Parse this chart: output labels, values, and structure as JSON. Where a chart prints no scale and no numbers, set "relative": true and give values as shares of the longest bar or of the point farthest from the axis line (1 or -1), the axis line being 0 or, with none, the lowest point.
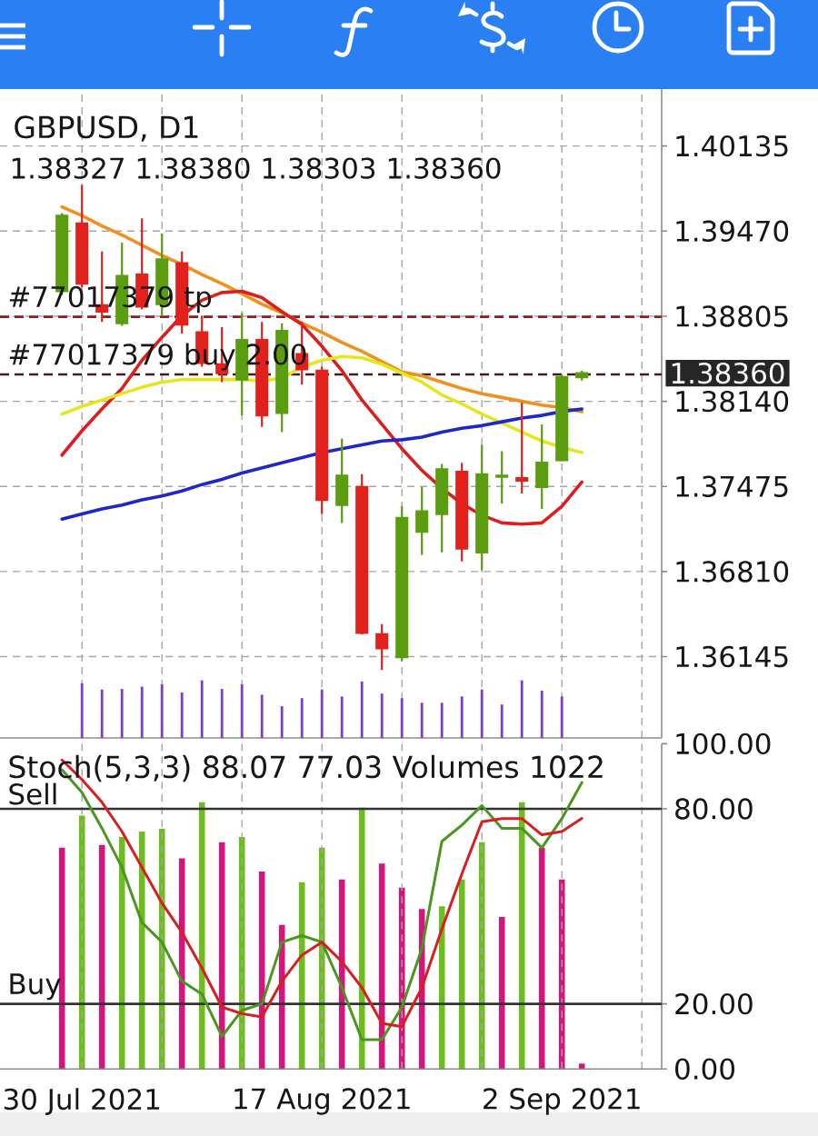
{
  "chart_data": [
    {
      "type": "candlestick",
      "title": "GBPUSD, D1",
      "subtitle": "1.38327 1.38380 1.38303 1.38360",
      "categories": [
        null,
        null,
        null,
        null,
        null,
        null,
        null,
        null,
        null,
        null,
        null,
        null,
        null,
        null,
        null,
        null,
        null,
        null,
        null,
        null,
        null,
        null,
        null,
        null,
        null,
        null,
        null
      ],
      "ohlc": [
        [
          1.39,
          1.3961,
          1.3897,
          1.3959
        ],
        [
          1.3953,
          1.3983,
          1.3903,
          1.3906
        ],
        [
          1.3889,
          1.3931,
          1.3876,
          1.3884
        ],
        [
          1.3875,
          1.3938,
          1.3873,
          1.3912
        ],
        [
          1.3913,
          1.3957,
          1.3886,
          1.3888
        ],
        [
          1.389,
          1.3945,
          1.3881,
          1.3925
        ],
        [
          1.3922,
          1.3931,
          1.3867,
          1.3874
        ],
        [
          1.3868,
          1.3881,
          1.3841,
          1.3844
        ],
        [
          1.3843,
          1.3872,
          1.3829,
          1.3836
        ],
        [
          1.3831,
          1.3883,
          1.3803,
          1.3862
        ],
        [
          1.3862,
          1.3876,
          1.3794,
          1.3803
        ],
        [
          1.3805,
          1.3875,
          1.379,
          1.3869
        ],
        [
          1.3851,
          1.3876,
          1.3827,
          1.3839
        ],
        [
          1.3838,
          1.3841,
          1.3726,
          1.3737
        ],
        [
          1.3733,
          1.3785,
          1.3719,
          1.3756
        ],
        [
          1.3747,
          1.3757,
          1.3632,
          1.3633
        ],
        [
          1.3632,
          1.364,
          1.3604,
          1.3621
        ],
        [
          1.3614,
          1.3732,
          1.3611,
          1.3723
        ],
        [
          1.3712,
          1.3747,
          1.3694,
          1.3728
        ],
        [
          1.3726,
          1.3765,
          1.3696,
          1.3761
        ],
        [
          1.3759,
          1.3766,
          1.3689,
          1.3699
        ],
        [
          1.3696,
          1.378,
          1.3682,
          1.3757
        ],
        [
          1.3755,
          1.3775,
          1.3734,
          1.3756
        ],
        [
          1.3754,
          1.3813,
          1.3742,
          1.3752
        ],
        [
          1.3747,
          1.3796,
          1.373,
          1.3766
        ],
        [
          1.3768,
          1.3835,
          1.3767,
          1.3833
        ],
        [
          1.38327,
          1.3838,
          1.38303,
          1.3836
        ]
      ],
      "colors": [
        "#5a9e10",
        "#e3211c",
        "#e3211c",
        "#5a9e10",
        "#e3211c",
        "#5a9e10",
        "#e3211c",
        "#e3211c",
        "#e3211c",
        "#5a9e10",
        "#e3211c",
        "#5a9e10",
        "#e3211c",
        "#e3211c",
        "#5a9e10",
        "#e3211c",
        "#e3211c",
        "#5a9e10",
        "#5a9e10",
        "#5a9e10",
        "#e3211c",
        "#5a9e10",
        "#5a9e10",
        "#e3211c",
        "#5a9e10",
        "#5a9e10",
        "#5a9e10"
      ],
      "series": [
        {
          "type": "line",
          "color": "#f0901e",
          "values": [
            1.3966,
            1.3959,
            1.3951,
            1.3944,
            1.3936,
            1.3928,
            1.3921,
            1.3913,
            1.3906,
            1.3898,
            1.389,
            1.3883,
            1.3875,
            1.3868,
            1.386,
            1.3853,
            1.3845,
            1.3837,
            1.3834,
            1.3829,
            1.3824,
            1.382,
            1.3817,
            1.3814,
            1.3811,
            1.3809,
            1.3806
          ]
        },
        {
          "type": "line",
          "color": "#dc1e1e",
          "values": [
            1.3772,
            1.3791,
            1.3808,
            1.3824,
            1.3846,
            1.3864,
            1.3881,
            1.3893,
            1.3899,
            1.39,
            1.3895,
            1.3884,
            1.3874,
            1.3857,
            1.3838,
            1.3815,
            1.3796,
            1.3777,
            1.376,
            1.3746,
            1.3734,
            1.3725,
            1.3719,
            1.3718,
            1.3719,
            1.3732,
            1.3751
          ]
        },
        {
          "type": "line",
          "color": "#e6e61e",
          "values": [
            1.3804,
            1.381,
            1.3815,
            1.382,
            1.3825,
            1.3829,
            1.3831,
            1.3831,
            1.3831,
            1.3831,
            1.383,
            1.3832,
            1.3841,
            1.3846,
            1.3849,
            1.3848,
            1.3843,
            1.3836,
            1.3829,
            1.3819,
            1.3812,
            1.3804,
            1.3797,
            1.379,
            1.3783,
            1.3778,
            1.3774
          ]
        },
        {
          "type": "line",
          "color": "#1e28c8",
          "values": [
            1.3722,
            1.3726,
            1.373,
            1.3733,
            1.3737,
            1.374,
            1.3744,
            1.3749,
            1.3753,
            1.3758,
            1.3762,
            1.3766,
            1.377,
            1.3774,
            1.3777,
            1.378,
            1.3783,
            1.3784,
            1.3786,
            1.379,
            1.3793,
            1.3795,
            1.3798,
            1.3801,
            1.3803,
            1.3806,
            1.3808
          ]
        }
      ],
      "ylim": [
        1.3551,
        1.4058
      ],
      "yticks": [
        1.40135,
        {
          "value": 1.3947,
          "label": "1.39470"
        },
        1.38805,
        {
          "value": 1.3814,
          "label": "1.38140"
        },
        1.37475,
        {
          "value": 1.3681,
          "label": "1.36810"
        },
        1.36145
      ],
      "grid": true,
      "ref_lines": [
        {
          "axis": "y",
          "value": 1.388,
          "label": "#77017379 tp",
          "color": "#8b2020",
          "line_style": "dashed"
        },
        {
          "axis": "y",
          "value": 1.3835,
          "label": "#77017379 buy 2.00",
          "color": "#4a1a1a",
          "line_style": "dashed"
        }
      ],
      "annotations": [
        "1.38360"
      ]
    },
    {
      "type": "bar",
      "relative": true,
      "categories": [
        null,
        null,
        null,
        null,
        null,
        null,
        null,
        null,
        null,
        null,
        null,
        null,
        null,
        null,
        null,
        null,
        null,
        null,
        null,
        null,
        null,
        null,
        null,
        null,
        null,
        null,
        null
      ],
      "values": [
        null,
        0.95,
        0.84,
        0.85,
        0.89,
        0.93,
        0.79,
        1,
        0.85,
        0.93,
        0.75,
        0.55,
        0.69,
        0.84,
        0.72,
        0.98,
        0.77,
        0.69,
        0.61,
        0.61,
        0.72,
        0.84,
        0.58,
        1,
        0.82,
        0.72,
        null
      ],
      "color": "#7b3fc4"
    },
    {
      "type": "line",
      "title": "Stoch(5,3,3) 88.07 77.03 Volumes 1022",
      "categories": [
        null,
        "30 Jul 2021",
        null,
        null,
        null,
        null,
        null,
        null,
        null,
        null,
        null,
        null,
        null,
        "17 Aug 2021",
        null,
        null,
        null,
        null,
        null,
        null,
        null,
        null,
        null,
        null,
        null,
        "2 Sep 2021",
        null
      ],
      "series": [
        {
          "color": "#4a9620",
          "values": [
            92,
            85,
            74,
            62,
            45,
            39,
            27,
            23,
            10,
            18,
            20,
            39,
            41,
            39,
            25,
            9,
            9,
            19,
            37,
            70,
            75,
            81,
            74,
            74,
            68,
            77,
            88.07
          ]
        },
        {
          "color": "#d81e1e",
          "values": [
            95,
            89,
            82,
            73,
            62,
            51,
            42,
            31,
            19,
            17,
            16,
            27,
            35,
            39,
            33,
            25,
            14,
            13,
            25,
            43,
            60,
            76,
            77,
            77,
            72,
            73,
            77.03
          ]
        }
      ],
      "ylim": [
        0,
        100
      ],
      "yticks": [
        {
          "value": 100,
          "label": "100.00"
        },
        {
          "value": 80,
          "label": "80.00"
        },
        {
          "value": 20,
          "label": "20.00"
        },
        {
          "value": 0,
          "label": "0.00"
        }
      ],
      "grid": "x",
      "ref_lines": [
        {
          "axis": "y",
          "value": 80,
          "label": "Sell",
          "color": "#333333"
        },
        {
          "axis": "y",
          "value": 20,
          "label": "Buy",
          "color": "#333333"
        }
      ]
    },
    {
      "type": "bar",
      "relative": true,
      "categories": [
        null,
        null,
        null,
        null,
        null,
        null,
        null,
        null,
        null,
        null,
        null,
        null,
        null,
        null,
        null,
        null,
        null,
        null,
        null,
        null,
        null,
        null,
        null,
        null,
        null,
        null,
        null
      ],
      "values": [
        0.83,
        0.95,
        0.84,
        0.87,
        0.89,
        0.9,
        0.79,
        1,
        0.85,
        0.87,
        0.74,
        0.54,
        0.7,
        0.83,
        0.71,
        0.98,
        0.77,
        0.68,
        0.6,
        0.61,
        0.71,
        0.85,
        0.57,
        1,
        0.83,
        0.71,
        0.02
      ],
      "colors": [
        "#d3157c",
        "#6cbd1d",
        "#d3157c",
        "#6cbd1d",
        "#6cbd1d",
        "#6cbd1d",
        "#d3157c",
        "#6cbd1d",
        "#d3157c",
        "#6cbd1d",
        "#d3157c",
        "#d3157c",
        "#6cbd1d",
        "#6cbd1d",
        "#d3157c",
        "#6cbd1d",
        "#d3157c",
        "#d3157c",
        "#d3157c",
        "#6cbd1d",
        "#6cbd1d",
        "#6cbd1d",
        "#d3157c",
        "#6cbd1d",
        "#d3157c",
        "#d3157c",
        "#d3157c"
      ]
    }
  ]
}
